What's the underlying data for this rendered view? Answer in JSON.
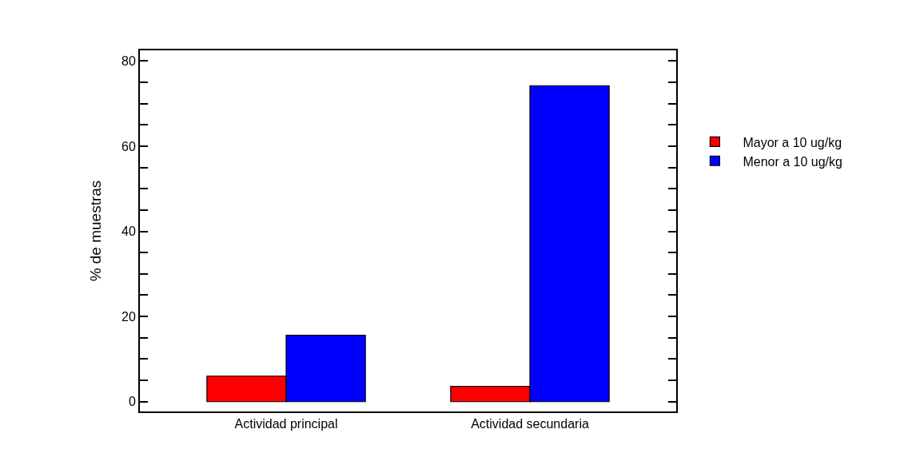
{
  "chart_data": {
    "type": "bar",
    "ylabel": "% de muestras",
    "categories": [
      "Actividad principal",
      "Actividad secundaria"
    ],
    "series": [
      {
        "name": "Mayor a 10 ug/kg",
        "color": "#ff0000",
        "values": [
          6.0,
          3.6
        ]
      },
      {
        "name": "Menor a 10 ug/kg",
        "color": "#0000ff",
        "values": [
          15.6,
          74.2
        ]
      }
    ],
    "ylim": [
      -2.3,
      82.5
    ],
    "yticks": [
      0,
      {
        "value": 5,
        "label": null
      },
      {
        "value": 10,
        "label": null
      },
      {
        "value": 15,
        "label": null
      },
      20,
      {
        "value": 25,
        "label": null
      },
      {
        "value": 30,
        "label": null
      },
      {
        "value": 35,
        "label": null
      },
      40,
      {
        "value": 45,
        "label": null
      },
      {
        "value": 50,
        "label": null
      },
      {
        "value": 55,
        "label": null
      },
      60,
      {
        "value": 65,
        "label": null
      },
      {
        "value": 70,
        "label": null
      },
      {
        "value": 75,
        "label": null
      },
      80
    ],
    "legend": "right"
  }
}
